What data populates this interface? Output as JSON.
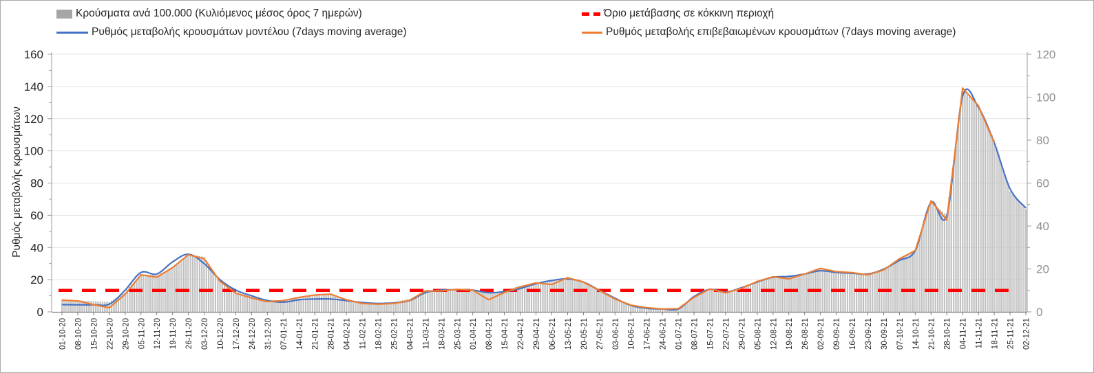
{
  "legend": {
    "items": [
      {
        "label": "Κρούσματα ανά 100.000 (Κυλιόμενος μέσος όρος 7 ημερών)",
        "type": "bar",
        "color": "#a6a6a6"
      },
      {
        "label": "Όριο μετάβασης σε κόκκινη περιοχή",
        "type": "dashed",
        "color": "#ff0000"
      },
      {
        "label": "Ρυθμός μεταβολής κρουσμάτων μοντέλου (7days moving average)",
        "type": "line",
        "color": "#4472c4"
      },
      {
        "label": "Ρυθμός μεταβολής επιβεβαιωμένων κρουσμάτων (7days moving average)",
        "type": "line",
        "color": "#ed7d31"
      }
    ]
  },
  "chart_data": {
    "type": "bar+line",
    "title": "",
    "x_labels": [
      "01-10-20",
      "08-10-20",
      "15-10-20",
      "22-10-20",
      "29-10-20",
      "05-11-20",
      "12-11-20",
      "19-11-20",
      "26-11-20",
      "03-12-20",
      "10-12-20",
      "17-12-20",
      "24-12-20",
      "31-12-20",
      "07-01-21",
      "14-01-21",
      "21-01-21",
      "28-01-21",
      "04-02-21",
      "11-02-21",
      "18-02-21",
      "25-02-21",
      "04-03-21",
      "11-03-21",
      "18-03-21",
      "25-03-21",
      "01-04-21",
      "08-04-21",
      "15-04-21",
      "22-04-21",
      "29-04-21",
      "06-05-21",
      "13-05-21",
      "20-05-21",
      "27-05-21",
      "03-06-21",
      "10-06-21",
      "17-06-21",
      "24-06-21",
      "01-07-21",
      "08-07-21",
      "15-07-21",
      "22-07-21",
      "29-07-21",
      "05-08-21",
      "12-08-21",
      "19-08-21",
      "26-08-21",
      "02-09-21",
      "09-09-21",
      "16-09-21",
      "23-09-21",
      "30-09-21",
      "07-10-21",
      "14-10-21",
      "21-10-21",
      "28-10-21",
      "04-11-21",
      "11-11-21",
      "18-11-21",
      "25-11-21",
      "02-12-21"
    ],
    "left_axis": {
      "label": "Ρυθμός μεταβολής κρουσμάτων",
      "min": 0,
      "max": 160,
      "ticks": [
        0,
        20,
        40,
        60,
        80,
        100,
        120,
        140,
        160
      ],
      "minor_step": 10,
      "text_color": "#262626"
    },
    "right_axis": {
      "min": 0,
      "max": 120,
      "ticks": [
        0,
        20,
        40,
        60,
        80,
        100,
        120
      ],
      "minor_step": 10,
      "text_color": "#8f8f8f"
    },
    "threshold": {
      "name": "Όριο μετάβασης σε κόκκινη περιοχή",
      "axis": "right",
      "value": 10,
      "color": "#ff0000"
    },
    "series": [
      {
        "name": "Κρούσματα ανά 100.000 (Κυλιόμενος μέσος όρος 7 ημερών)",
        "type": "bar",
        "axis": "right",
        "fill": "#d6d6d6",
        "stroke": "#979797",
        "values": [
          5.5,
          5.3,
          4.8,
          4.5,
          8.9,
          17.5,
          16.8,
          20.5,
          26.8,
          25.5,
          14,
          9,
          7,
          5.5,
          5.3,
          6.5,
          7.8,
          8,
          6,
          4.2,
          4.2,
          4.5,
          6,
          9.5,
          10,
          10.3,
          10.3,
          8.5,
          10,
          12,
          13.5,
          14.2,
          15.8,
          14,
          10,
          6,
          2.8,
          1.6,
          1.4,
          1.5,
          6.8,
          10.5,
          9,
          11,
          14,
          16.4,
          16.5,
          17.5,
          20,
          18.5,
          18.3,
          17.5,
          19.5,
          24,
          29,
          51,
          45,
          103.5,
          95.5,
          80,
          56,
          47.8
        ]
      },
      {
        "name": "Ρυθμός μεταβολής κρουσμάτων μοντέλου (7days moving average)",
        "type": "line",
        "axis": "left",
        "color": "#4472c4",
        "values": [
          4.5,
          4.4,
          4.4,
          4.8,
          13.5,
          24.5,
          23.5,
          31,
          35.8,
          30,
          20,
          13.5,
          10,
          7,
          6,
          7.5,
          8,
          8,
          7,
          5.8,
          5.2,
          5.5,
          7,
          12,
          13.5,
          13.8,
          13.5,
          11.9,
          12.5,
          14.5,
          17.5,
          19.5,
          20.5,
          18.5,
          13.5,
          8.5,
          4,
          2.2,
          1.8,
          1.8,
          9.5,
          14,
          12.3,
          15,
          18.5,
          21.5,
          22,
          23.5,
          25.5,
          24.5,
          24,
          23.5,
          26.5,
          32,
          38,
          68,
          60,
          134,
          127,
          105,
          76.5,
          64.5
        ]
      },
      {
        "name": "Ρυθμός μεταβολής επιβεβαιωμένων κρουσμάτων (7days moving average)",
        "type": "line",
        "axis": "left",
        "color": "#ed7d31",
        "values": [
          7.3,
          6.8,
          4.5,
          2.5,
          11,
          23,
          21.5,
          27.5,
          35.5,
          33,
          19,
          11.6,
          8.6,
          6.3,
          7,
          9,
          10.5,
          11,
          7.5,
          5.2,
          4.8,
          5.2,
          7,
          13,
          13,
          14,
          13.5,
          7.5,
          12,
          15.5,
          18,
          17,
          21.2,
          18.5,
          13.3,
          8,
          4.2,
          2.6,
          1.8,
          2,
          9,
          14.2,
          11.8,
          14.6,
          18.9,
          21.8,
          20.5,
          23.5,
          27,
          25,
          24.4,
          23,
          26,
          33,
          38,
          69,
          57,
          139,
          128,
          105,
          null,
          null
        ]
      }
    ],
    "grid": "horizontal",
    "legend_position": "top",
    "colors": {
      "grid": "#e2e2e2",
      "axis": "#9b9b9b",
      "bottom_axis": "#7f7f7f",
      "background": "#ffffff"
    }
  }
}
